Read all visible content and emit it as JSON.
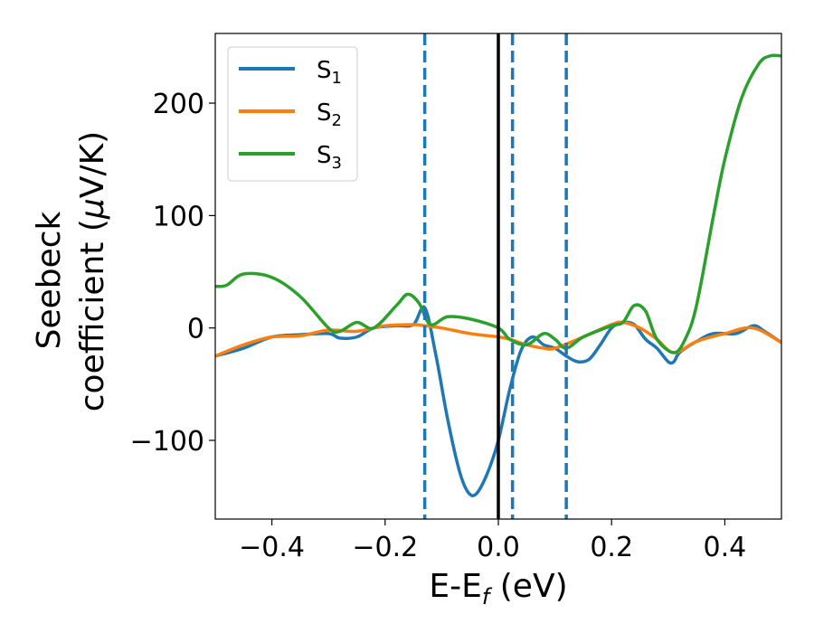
{
  "chart_data": {
    "type": "line",
    "xlabel": "E-E",
    "xlabel_sub": "f",
    "xlabel_unit": " (eV)",
    "ylabel_line1": "Seebeck",
    "ylabel_line2": "coefficient  (",
    "ylabel_mu": "μ",
    "ylabel_unit": "V/K)",
    "xlim": [
      -0.5,
      0.5
    ],
    "ylim": [
      -170,
      262
    ],
    "xticks": [
      -0.4,
      -0.2,
      0.0,
      0.2,
      0.4
    ],
    "xtick_labels": [
      "−0.4",
      "−0.2",
      "0.0",
      "0.2",
      "0.4"
    ],
    "yticks": [
      -100,
      0,
      100,
      200
    ],
    "ytick_labels": [
      "−100",
      "0",
      "100",
      "200"
    ],
    "legend_position": "upper-left",
    "fermi_line": {
      "x": 0.0,
      "color": "#000000"
    },
    "dashed_lines": {
      "x": [
        -0.13,
        0.025,
        0.12
      ],
      "color": "#1f77b4"
    },
    "series": [
      {
        "name": "S",
        "sub": "1",
        "color": "#1f77b4",
        "x": [
          -0.5,
          -0.45,
          -0.4,
          -0.35,
          -0.3,
          -0.28,
          -0.25,
          -0.22,
          -0.18,
          -0.15,
          -0.13,
          -0.11,
          -0.09,
          -0.07,
          -0.055,
          -0.04,
          -0.02,
          0.0,
          0.02,
          0.04,
          0.06,
          0.08,
          0.1,
          0.12,
          0.14,
          0.16,
          0.18,
          0.2,
          0.22,
          0.24,
          0.26,
          0.28,
          0.3,
          0.31,
          0.32,
          0.35,
          0.38,
          0.42,
          0.45,
          0.47,
          0.5
        ],
        "y": [
          -25,
          -18,
          -8,
          -6,
          -5,
          -9,
          -8,
          0,
          2,
          3,
          18,
          -25,
          -80,
          -125,
          -145,
          -148,
          -130,
          -100,
          -55,
          -20,
          -8,
          -15,
          -18,
          -25,
          -30,
          -28,
          -15,
          0,
          5,
          3,
          -10,
          -18,
          -30,
          -30,
          -22,
          -12,
          -5,
          -5,
          2,
          -3,
          -13
        ]
      },
      {
        "name": "S",
        "sub": "2",
        "color": "#ff7f0e",
        "x": [
          -0.5,
          -0.45,
          -0.4,
          -0.35,
          -0.3,
          -0.25,
          -0.2,
          -0.15,
          -0.13,
          -0.1,
          -0.05,
          0.0,
          0.02,
          0.05,
          0.08,
          0.1,
          0.15,
          0.2,
          0.22,
          0.25,
          0.28,
          0.31,
          0.35,
          0.4,
          0.45,
          0.5
        ],
        "y": [
          -25,
          -15,
          -8,
          -7,
          -2,
          -3,
          2,
          3,
          2,
          0,
          -5,
          -8,
          -10,
          -15,
          -18,
          -18,
          -8,
          3,
          5,
          0,
          -10,
          -22,
          -12,
          -5,
          0,
          -13
        ]
      },
      {
        "name": "S",
        "sub": "3",
        "color": "#2ca02c",
        "x": [
          -0.5,
          -0.48,
          -0.45,
          -0.4,
          -0.35,
          -0.3,
          -0.28,
          -0.25,
          -0.22,
          -0.18,
          -0.16,
          -0.14,
          -0.12,
          -0.09,
          -0.05,
          0.0,
          0.02,
          0.05,
          0.08,
          0.1,
          0.12,
          0.15,
          0.2,
          0.22,
          0.24,
          0.26,
          0.28,
          0.31,
          0.33,
          0.35,
          0.38,
          0.4,
          0.43,
          0.46,
          0.48,
          0.5
        ],
        "y": [
          37,
          38,
          48,
          45,
          28,
          0,
          -3,
          5,
          0,
          20,
          30,
          22,
          3,
          10,
          8,
          0,
          -10,
          -15,
          -5,
          -10,
          -18,
          -8,
          2,
          5,
          20,
          15,
          -10,
          -22,
          -10,
          20,
          100,
          150,
          205,
          235,
          242,
          242
        ]
      }
    ]
  }
}
